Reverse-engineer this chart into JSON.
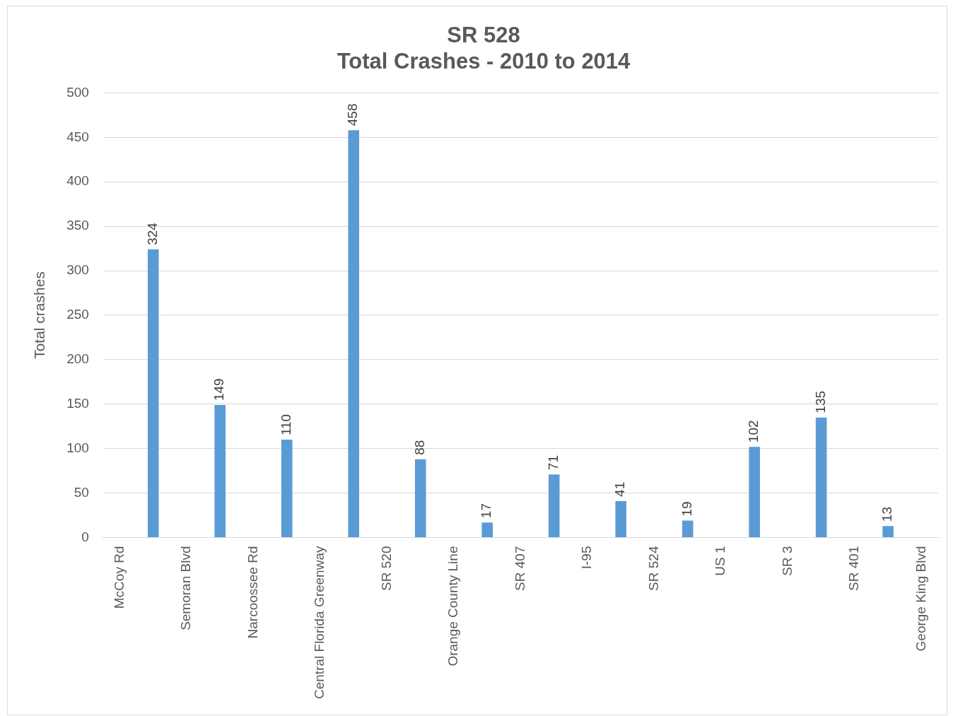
{
  "chart_data": {
    "type": "bar",
    "title": "SR 528",
    "subtitle": "Total Crashes - 2010 to 2014",
    "ylabel": "Total crashes",
    "categories": [
      "McCoy Rd",
      null,
      "Semoran Blvd",
      null,
      "Narcoossee Rd",
      null,
      "Central Florida Greenway",
      null,
      "SR 520",
      null,
      "Orange County Line",
      null,
      "SR 407",
      null,
      "I-95",
      null,
      "SR 524",
      null,
      "US 1",
      null,
      "SR 3",
      null,
      "SR 401",
      null,
      "George King Blvd"
    ],
    "values": [
      null,
      324,
      null,
      149,
      null,
      110,
      null,
      458,
      null,
      88,
      null,
      17,
      null,
      71,
      null,
      41,
      null,
      19,
      null,
      102,
      null,
      135,
      null,
      13,
      null
    ],
    "color": "#5b9bd5",
    "ylim": [
      0,
      500
    ],
    "yticks": [
      0,
      50,
      100,
      150,
      200,
      250,
      300,
      350,
      400,
      450,
      500
    ],
    "grid": "y",
    "legend": false,
    "data_labels": true
  }
}
